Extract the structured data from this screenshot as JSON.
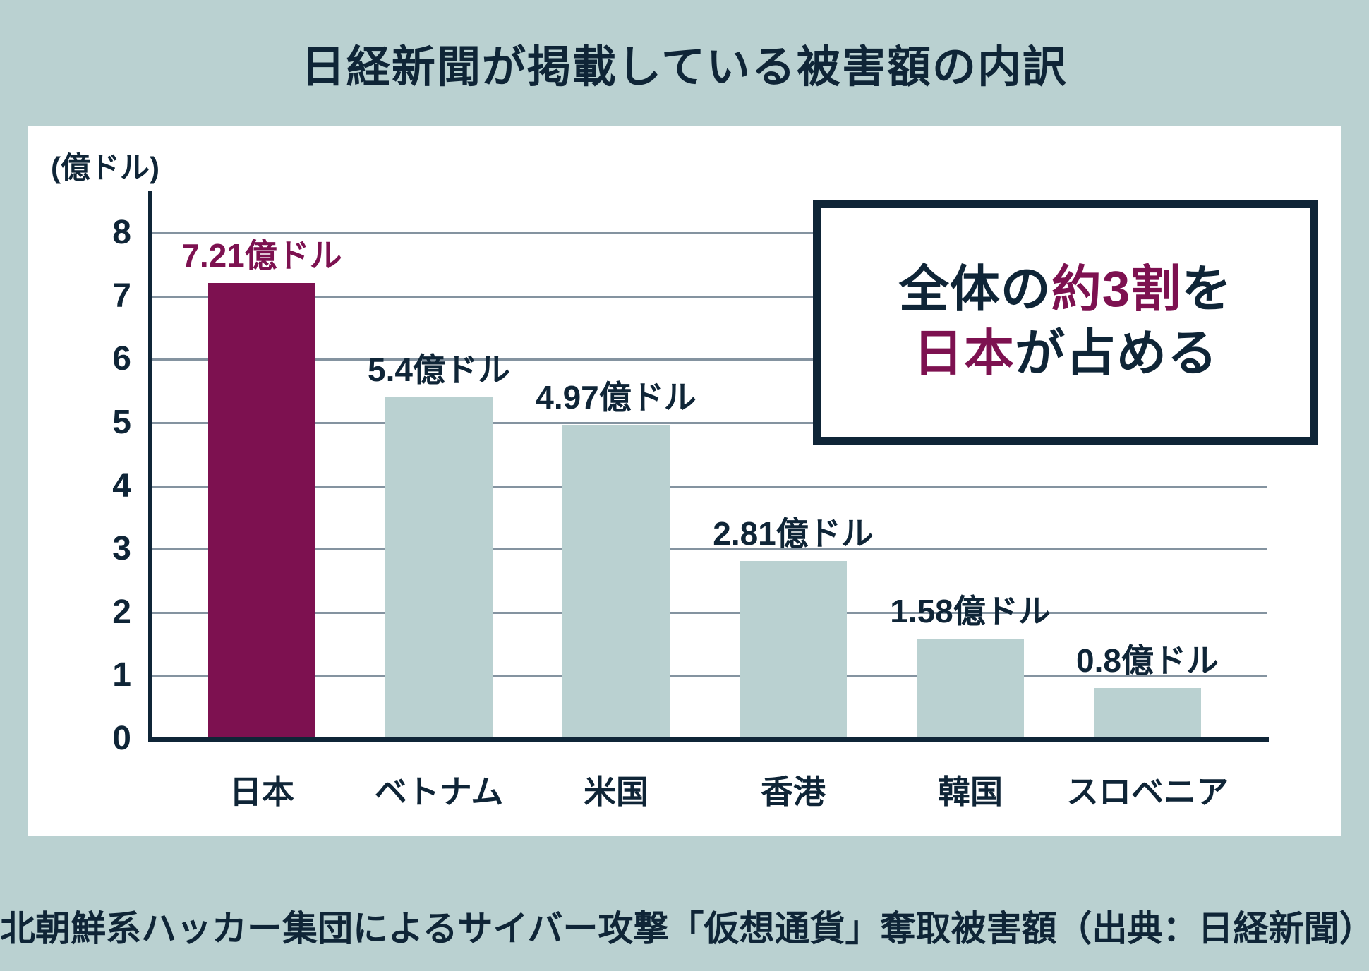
{
  "title": "日経新聞が掲載している被害額の内訳",
  "caption": "北朝鮮系ハッカー集団によるサイバー攻撃「仮想通貨」奪取被害額（出典：日経新聞）",
  "colors": {
    "background": "#bad1d1",
    "panel": "#ffffff",
    "navy": "#0f2537",
    "accent": "#7d1150",
    "bar_light": "#bad1d1",
    "gridline": "#8493a0"
  },
  "chart_data": {
    "type": "bar",
    "title": "日経新聞が掲載している被害額の内訳",
    "unit_label": "(億ドル)",
    "categories": [
      "日本",
      "ベトナム",
      "米国",
      "香港",
      "韓国",
      "スロベニア"
    ],
    "values": [
      7.21,
      5.4,
      4.97,
      2.81,
      1.58,
      0.8
    ],
    "value_labels": [
      "7.21億ドル",
      "5.4億ドル",
      "4.97億ドル",
      "2.81億ドル",
      "1.58億ドル",
      "0.8億ドル"
    ],
    "highlight_index": 0,
    "ylabel": "",
    "xlabel": "",
    "ylim": [
      0,
      8
    ],
    "yticks": [
      0,
      1,
      2,
      3,
      4,
      5,
      6,
      7,
      8
    ],
    "grid": "horizontal",
    "legend": "none"
  },
  "callout": {
    "lines": [
      [
        {
          "text": "全体の",
          "color": "navy"
        },
        {
          "text": "約3割",
          "color": "accent"
        },
        {
          "text": "を",
          "color": "navy"
        }
      ],
      [
        {
          "text": "日本",
          "color": "accent"
        },
        {
          "text": "が占める",
          "color": "navy"
        }
      ]
    ]
  }
}
